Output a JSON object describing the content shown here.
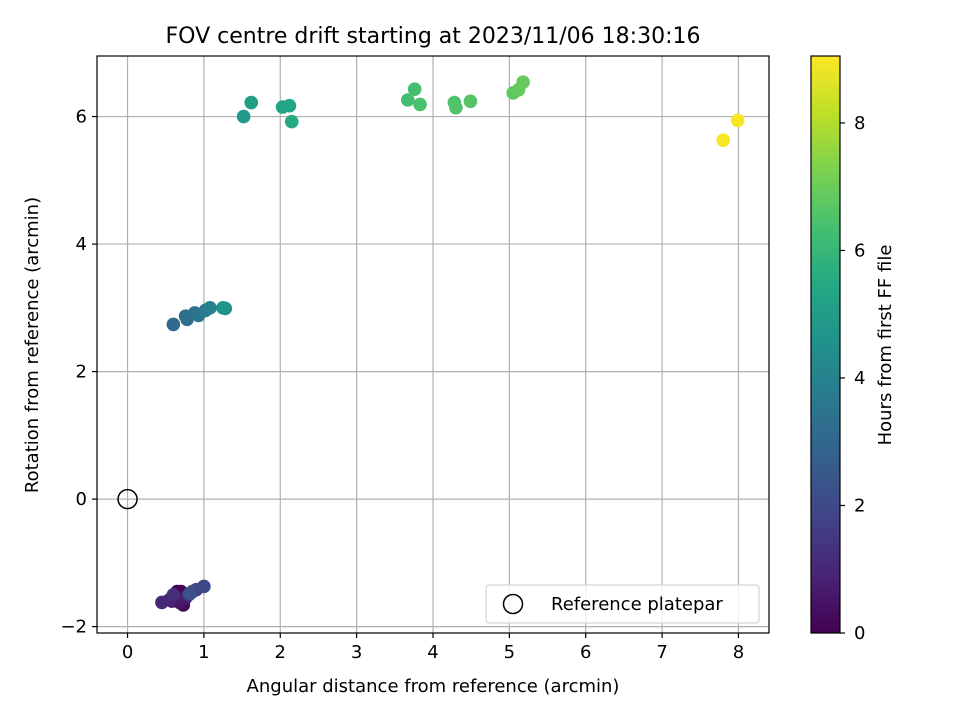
{
  "chart_data": {
    "type": "scatter",
    "title": "FOV centre drift starting at 2023/11/06 18:30:16",
    "xlabel": "Angular distance from reference (arcmin)",
    "ylabel": "Rotation from reference (arcmin)",
    "xlim": [
      -0.4,
      8.4
    ],
    "ylim": [
      -2.1,
      6.95
    ],
    "x_ticks": [
      "0",
      "1",
      "2",
      "3",
      "4",
      "5",
      "6",
      "7",
      "8"
    ],
    "y_ticks": [
      "−2",
      "0",
      "2",
      "4",
      "6"
    ],
    "grid": true,
    "legend": {
      "position": "lower-right",
      "entries": [
        "Reference platepar"
      ]
    },
    "reference_point": {
      "x": 0,
      "y": 0,
      "label": "Reference platepar"
    },
    "colorbar": {
      "label": "Hours from first FF file",
      "range": [
        0,
        9.05
      ],
      "ticks": [
        "0",
        "2",
        "4",
        "6",
        "8"
      ],
      "colormap": "viridis"
    },
    "points": [
      {
        "x": 0.65,
        "y": -1.45,
        "h": 0.05
      },
      {
        "x": 0.7,
        "y": -1.45,
        "h": 0.1
      },
      {
        "x": 0.72,
        "y": -1.52,
        "h": 0.15
      },
      {
        "x": 0.74,
        "y": -1.58,
        "h": 0.2
      },
      {
        "x": 0.73,
        "y": -1.66,
        "h": 0.25
      },
      {
        "x": 0.62,
        "y": -1.55,
        "h": 0.35
      },
      {
        "x": 0.58,
        "y": -1.6,
        "h": 0.45
      },
      {
        "x": 0.68,
        "y": -1.62,
        "h": 0.55
      },
      {
        "x": 0.76,
        "y": -1.55,
        "h": 0.7
      },
      {
        "x": 0.55,
        "y": -1.58,
        "h": 0.85
      },
      {
        "x": 0.45,
        "y": -1.62,
        "h": 1.0
      },
      {
        "x": 0.6,
        "y": -1.5,
        "h": 1.2
      },
      {
        "x": 0.8,
        "y": -1.5,
        "h": 1.4
      },
      {
        "x": 0.85,
        "y": -1.45,
        "h": 1.6
      },
      {
        "x": 0.9,
        "y": -1.42,
        "h": 1.8
      },
      {
        "x": 1.0,
        "y": -1.37,
        "h": 2.0
      },
      {
        "x": 0.82,
        "y": -1.48,
        "h": 2.2
      },
      {
        "x": 0.6,
        "y": 2.74,
        "h": 3.1
      },
      {
        "x": 0.78,
        "y": 2.82,
        "h": 3.2
      },
      {
        "x": 0.76,
        "y": 2.87,
        "h": 3.3
      },
      {
        "x": 0.88,
        "y": 2.92,
        "h": 3.4
      },
      {
        "x": 0.93,
        "y": 2.88,
        "h": 3.5
      },
      {
        "x": 1.02,
        "y": 2.96,
        "h": 3.7
      },
      {
        "x": 1.08,
        "y": 3.0,
        "h": 3.9
      },
      {
        "x": 1.25,
        "y": 3.0,
        "h": 4.6
      },
      {
        "x": 1.28,
        "y": 2.99,
        "h": 4.7
      },
      {
        "x": 1.52,
        "y": 6.0,
        "h": 4.8
      },
      {
        "x": 1.62,
        "y": 6.22,
        "h": 5.0
      },
      {
        "x": 2.03,
        "y": 6.15,
        "h": 5.3
      },
      {
        "x": 2.12,
        "y": 6.17,
        "h": 5.4
      },
      {
        "x": 2.15,
        "y": 5.92,
        "h": 5.5
      },
      {
        "x": 3.67,
        "y": 6.26,
        "h": 6.3
      },
      {
        "x": 3.76,
        "y": 6.43,
        "h": 6.35
      },
      {
        "x": 3.83,
        "y": 6.19,
        "h": 6.4
      },
      {
        "x": 4.28,
        "y": 6.22,
        "h": 6.5
      },
      {
        "x": 4.3,
        "y": 6.14,
        "h": 6.55
      },
      {
        "x": 4.49,
        "y": 6.24,
        "h": 6.6
      },
      {
        "x": 5.05,
        "y": 6.37,
        "h": 6.8
      },
      {
        "x": 5.12,
        "y": 6.42,
        "h": 6.85
      },
      {
        "x": 5.18,
        "y": 6.54,
        "h": 6.9
      },
      {
        "x": 7.8,
        "y": 5.63,
        "h": 8.95
      },
      {
        "x": 7.99,
        "y": 5.94,
        "h": 9.0
      }
    ]
  }
}
